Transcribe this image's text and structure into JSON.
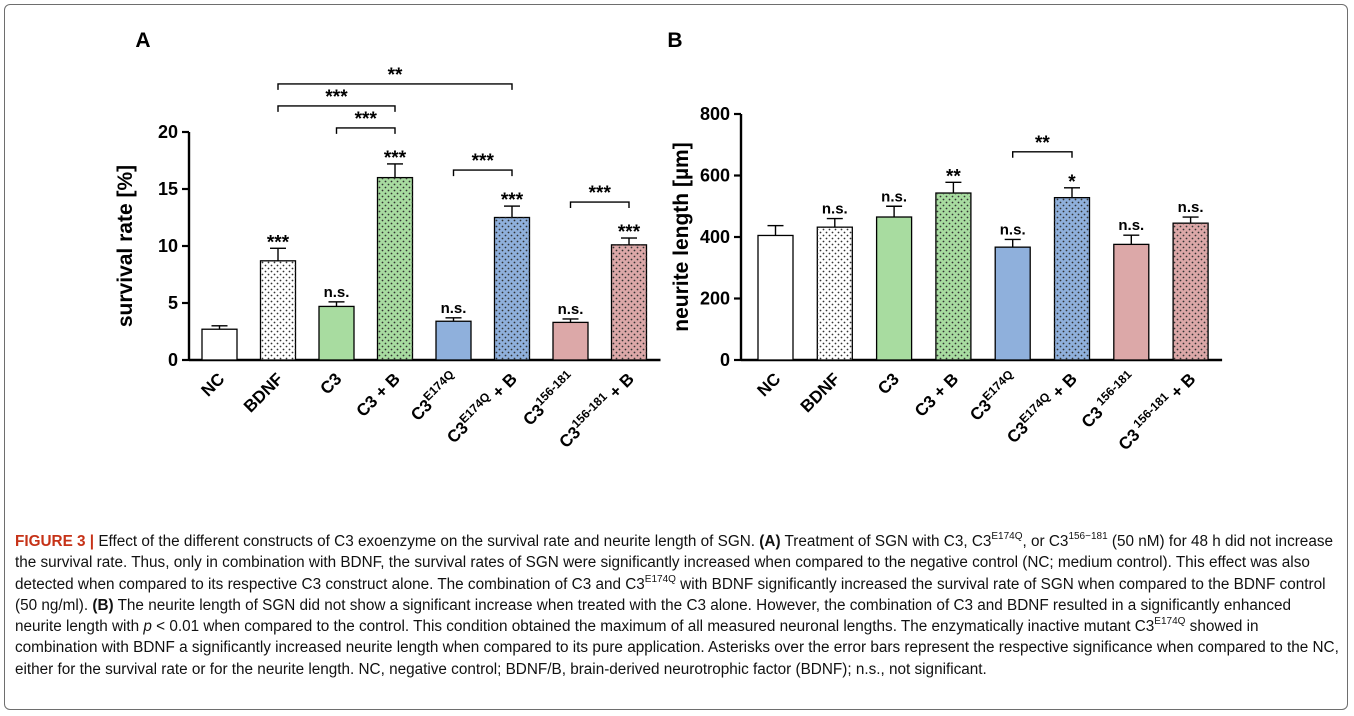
{
  "chart_data": [
    {
      "type": "bar",
      "panel_label": "A",
      "ylabel": "survival rate [%]",
      "ylim": [
        0,
        20
      ],
      "yticks": [
        0,
        5,
        10,
        15,
        20
      ],
      "categories": [
        {
          "base": "NC",
          "sup": "",
          "tail": ""
        },
        {
          "base": "BDNF",
          "sup": "",
          "tail": ""
        },
        {
          "base": "C3",
          "sup": "",
          "tail": ""
        },
        {
          "base": "C3 + B",
          "sup": "",
          "tail": ""
        },
        {
          "base": "C3",
          "sup": "E174Q",
          "tail": ""
        },
        {
          "base": "C3",
          "sup": "E174Q",
          "tail": " + B"
        },
        {
          "base": "C3",
          "sup": "156-181",
          "tail": ""
        },
        {
          "base": "C3",
          "sup": "156-181",
          "tail": " + B"
        }
      ],
      "values": [
        2.7,
        8.7,
        4.7,
        16.0,
        3.4,
        12.5,
        3.3,
        10.1
      ],
      "errors": [
        0.3,
        1.1,
        0.4,
        1.2,
        0.3,
        1.0,
        0.3,
        0.6
      ],
      "significance": [
        "",
        "***",
        "n.s.",
        "***",
        "n.s.",
        "***",
        "n.s.",
        "***"
      ],
      "comparisons": [
        {
          "from": 1,
          "to": 5,
          "label": "**"
        },
        {
          "from": 1,
          "to": 3,
          "label": "***"
        },
        {
          "from": 2,
          "to": 3,
          "label": "***"
        },
        {
          "from": 4,
          "to": 5,
          "label": "***"
        },
        {
          "from": 6,
          "to": 7,
          "label": "***"
        }
      ]
    },
    {
      "type": "bar",
      "panel_label": "B",
      "ylabel": "neurite length [µm]",
      "ylim": [
        0,
        800
      ],
      "yticks": [
        0,
        200,
        400,
        600,
        800
      ],
      "categories": [
        {
          "base": "NC",
          "sup": "",
          "tail": ""
        },
        {
          "base": "BDNF",
          "sup": "",
          "tail": ""
        },
        {
          "base": "C3",
          "sup": "",
          "tail": ""
        },
        {
          "base": "C3 + B",
          "sup": "",
          "tail": ""
        },
        {
          "base": "C3",
          "sup": "E174Q",
          "tail": ""
        },
        {
          "base": "C3",
          "sup": "E174Q",
          "tail": " + B"
        },
        {
          "base": "C3",
          "sup": " 156-181",
          "tail": ""
        },
        {
          "base": "C3",
          "sup": " 156-181",
          "tail": " + B"
        }
      ],
      "values": [
        405,
        432,
        465,
        543,
        367,
        528,
        376,
        445
      ],
      "errors": [
        32,
        28,
        35,
        35,
        25,
        32,
        30,
        20
      ],
      "significance": [
        "",
        "n.s.",
        "n.s.",
        "**",
        "n.s.",
        "*",
        "n.s.",
        "n.s."
      ],
      "comparisons": [
        {
          "from": 4,
          "to": 5,
          "label": "**"
        }
      ]
    }
  ],
  "series_style": {
    "fills": [
      "#ffffff",
      "#ffffff",
      "#a8dca0",
      "#a8dca0",
      "#8fb0dc",
      "#8fb0dc",
      "#dca8a8",
      "#dca8a8"
    ],
    "dotted": [
      false,
      true,
      false,
      true,
      false,
      true,
      false,
      true
    ]
  },
  "caption": {
    "fig_label": "FIGURE 3 |",
    "t1": " Effect of the different constructs of C3 exoenzyme on the survival rate and neurite length of SGN. ",
    "bold_a": "(A)",
    "t2": " Treatment of SGN with C3, C3",
    "s1": "E174Q",
    "t3": ", or C3",
    "s2": "156−181",
    "t4": " (50 nM) for 48 h did not increase the survival rate. Thus, only in combination with BDNF, the survival rates of SGN were significantly increased when compared to the negative control (NC; medium control). This effect was also detected when compared to its respective C3 construct alone. The combination of C3 and C3",
    "s3": "E174Q",
    "t5": " with BDNF significantly increased the survival rate of SGN when compared to the BDNF control (50 ng/ml). ",
    "bold_b": "(B)",
    "t6": " The neurite length of SGN did not show a significant increase when treated with the C3 alone. However, the combination of C3 and BDNF resulted in a significantly enhanced neurite length with ",
    "p": "p",
    "t7": " < 0.01 when compared to the control. This condition obtained the maximum of all measured neuronal lengths. The enzymatically inactive mutant C3",
    "s4": "E174Q",
    "t8": " showed in combination with BDNF a significantly increased neurite length when compared to its pure application. Asterisks over the error bars represent the respective significance when compared to the NC, either for the survival rate or for the neurite length. NC, negative control; BDNF/B, brain-derived neurotrophic factor (BDNF); n.s., not significant."
  }
}
